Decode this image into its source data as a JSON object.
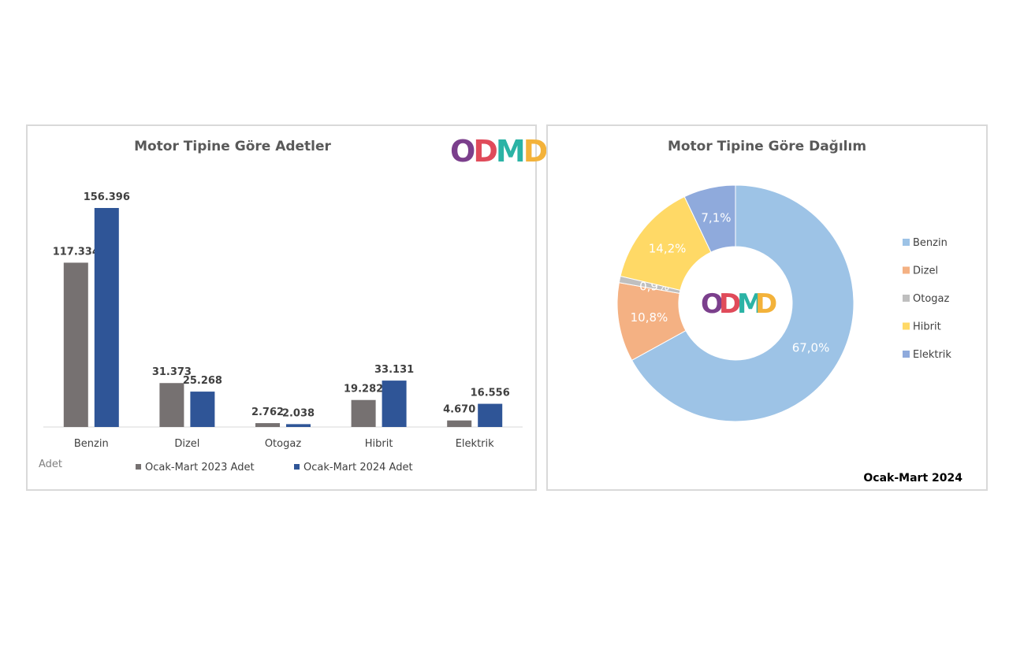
{
  "chart_data": [
    {
      "type": "bar",
      "title": "Motor Tipine Göre Adetler",
      "ylabel": "Adet",
      "categories": [
        "Benzin",
        "Dizel",
        "Otogaz",
        "Hibrit",
        "Elektrik"
      ],
      "series": [
        {
          "name": "Ocak-Mart 2023 Adet",
          "values": [
            117334,
            31373,
            2762,
            19282,
            4670
          ],
          "labels": [
            "117.334",
            "31.373",
            "2.762",
            "19.282",
            "4.670"
          ],
          "color": "#767171"
        },
        {
          "name": "Ocak-Mart 2024 Adet",
          "values": [
            156396,
            25268,
            2038,
            33131,
            16556
          ],
          "labels": [
            "156.396",
            "25.268",
            "2.038",
            "33.131",
            "16.556"
          ],
          "color": "#2f5597"
        }
      ],
      "ylim": [
        0,
        156396
      ],
      "legend": "bottom",
      "grid": false
    },
    {
      "type": "pie",
      "variant": "donut",
      "title": "Motor Tipine Göre Dağılım",
      "categories": [
        "Benzin",
        "Dizel",
        "Otogaz",
        "Hibrit",
        "Elektrik"
      ],
      "values": [
        67.0,
        10.8,
        0.9,
        14.2,
        7.1
      ],
      "labels": [
        "67,0%",
        "10,8%",
        "0,9%",
        "14,2%",
        "7,1%"
      ],
      "colors": [
        "#9dc3e6",
        "#f4b183",
        "#bfbfbf",
        "#ffd966",
        "#8faadc"
      ],
      "legend": "right",
      "note": "Ocak-Mart 2024"
    }
  ],
  "logo": {
    "letters": [
      "O",
      "D",
      "M",
      "D"
    ],
    "colors": [
      "#7b3f8c",
      "#e04b5a",
      "#2bb3a5",
      "#f3b23a"
    ]
  }
}
